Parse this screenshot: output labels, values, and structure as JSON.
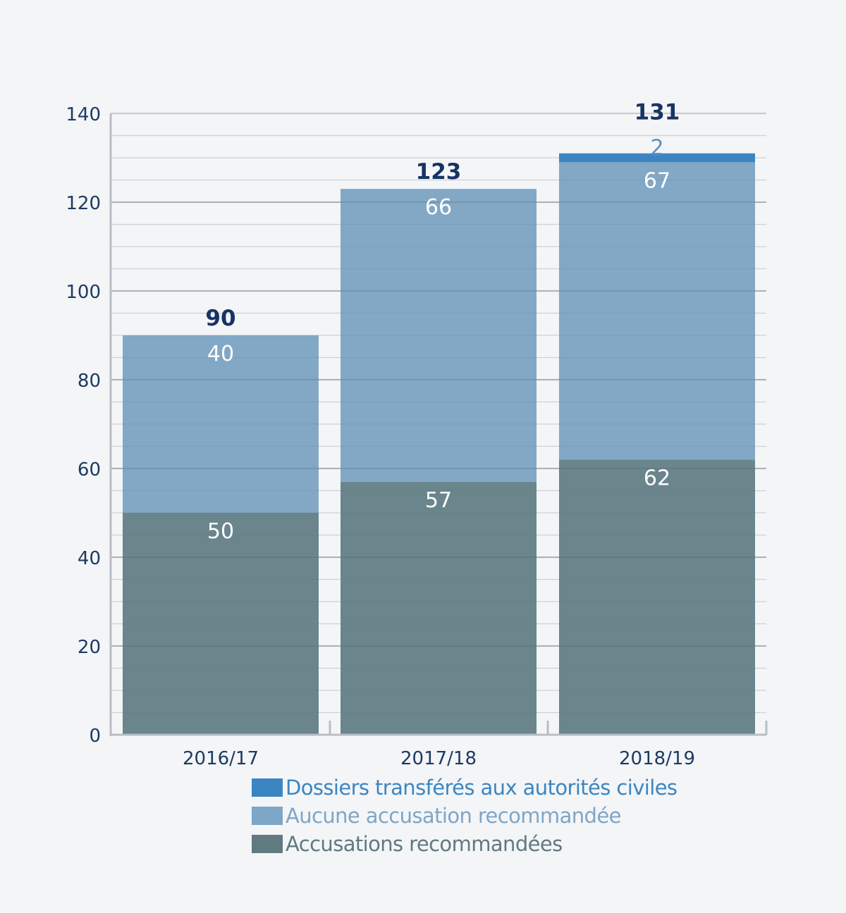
{
  "chart_data": {
    "type": "bar",
    "stacked": true,
    "categories": [
      "2016/17",
      "2017/18",
      "2018/19"
    ],
    "ylim": [
      0,
      140
    ],
    "yticks": [
      0,
      20,
      40,
      60,
      80,
      100,
      120,
      140
    ],
    "grid": true,
    "series": [
      {
        "name": "Accusations recommandées",
        "values": [
          50,
          57,
          62
        ],
        "color": "#6a868c",
        "label_color": "#ffffff"
      },
      {
        "name": "Aucune accusation recommandée",
        "values": [
          40,
          66,
          67
        ],
        "color": "#82a8c6",
        "label_color": "#ffffff"
      },
      {
        "name": "Dossiers transférés aux autorités civiles",
        "values": [
          null,
          null,
          2
        ],
        "color": "#3b86c2",
        "label_color": "#5b92c4"
      }
    ],
    "totals": [
      90,
      123,
      131
    ],
    "legend": {
      "placement": "bottom",
      "order": [
        "Dossiers transférés aux autorités civiles",
        "Aucune accusation recommandée",
        "Accusations recommandées"
      ]
    },
    "colors": {
      "axis_text": "#1e3a63",
      "total_text": "#163463",
      "grid_major": "#c8ccd3",
      "grid_minor": "#dcdfe4",
      "legend_top": "#3b86c2",
      "legend_middle": "#7ea6c7",
      "legend_bottom": "#5f7a80"
    }
  }
}
